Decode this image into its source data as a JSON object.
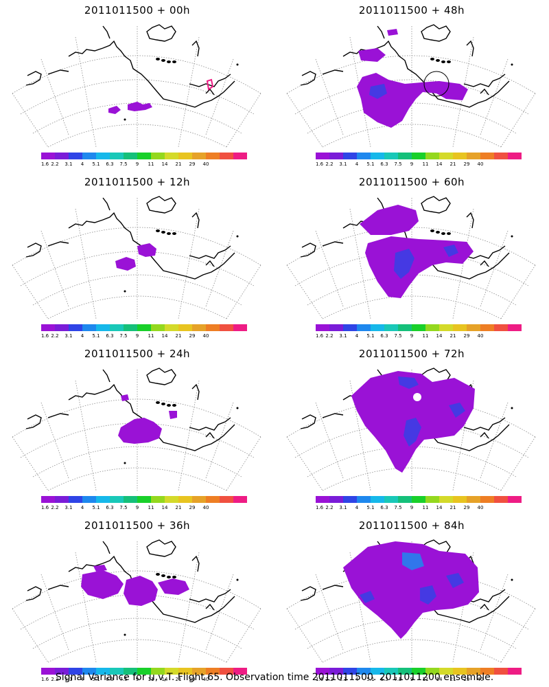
{
  "panels": [
    {
      "title": "2011011500 + 00h"
    },
    {
      "title": "2011011500 + 48h"
    },
    {
      "title": "2011011500 + 12h"
    },
    {
      "title": "2011011500 + 60h"
    },
    {
      "title": "2011011500 + 24h"
    },
    {
      "title": "2011011500 + 72h"
    },
    {
      "title": "2011011500 + 36h"
    },
    {
      "title": "2011011500 + 84h"
    }
  ],
  "colorbar": {
    "colors": [
      "#9a12d6",
      "#7a1cd8",
      "#2f44e6",
      "#1e88ee",
      "#16b8ea",
      "#19c8b8",
      "#15c07a",
      "#19d02a",
      "#94d81e",
      "#d4da2a",
      "#e8c420",
      "#e6a228",
      "#ee7e24",
      "#f05040",
      "#ee1c84"
    ],
    "labels": [
      "1.6",
      "2.2",
      "3.1",
      "4",
      "5.1",
      "6.3",
      "7.5",
      "9",
      "11",
      "14",
      "21",
      "29",
      "40"
    ]
  },
  "footer": "Signal Variance for u,v,T. Flight 65. Observation time 2011011500. 2011011200 ensemble."
}
